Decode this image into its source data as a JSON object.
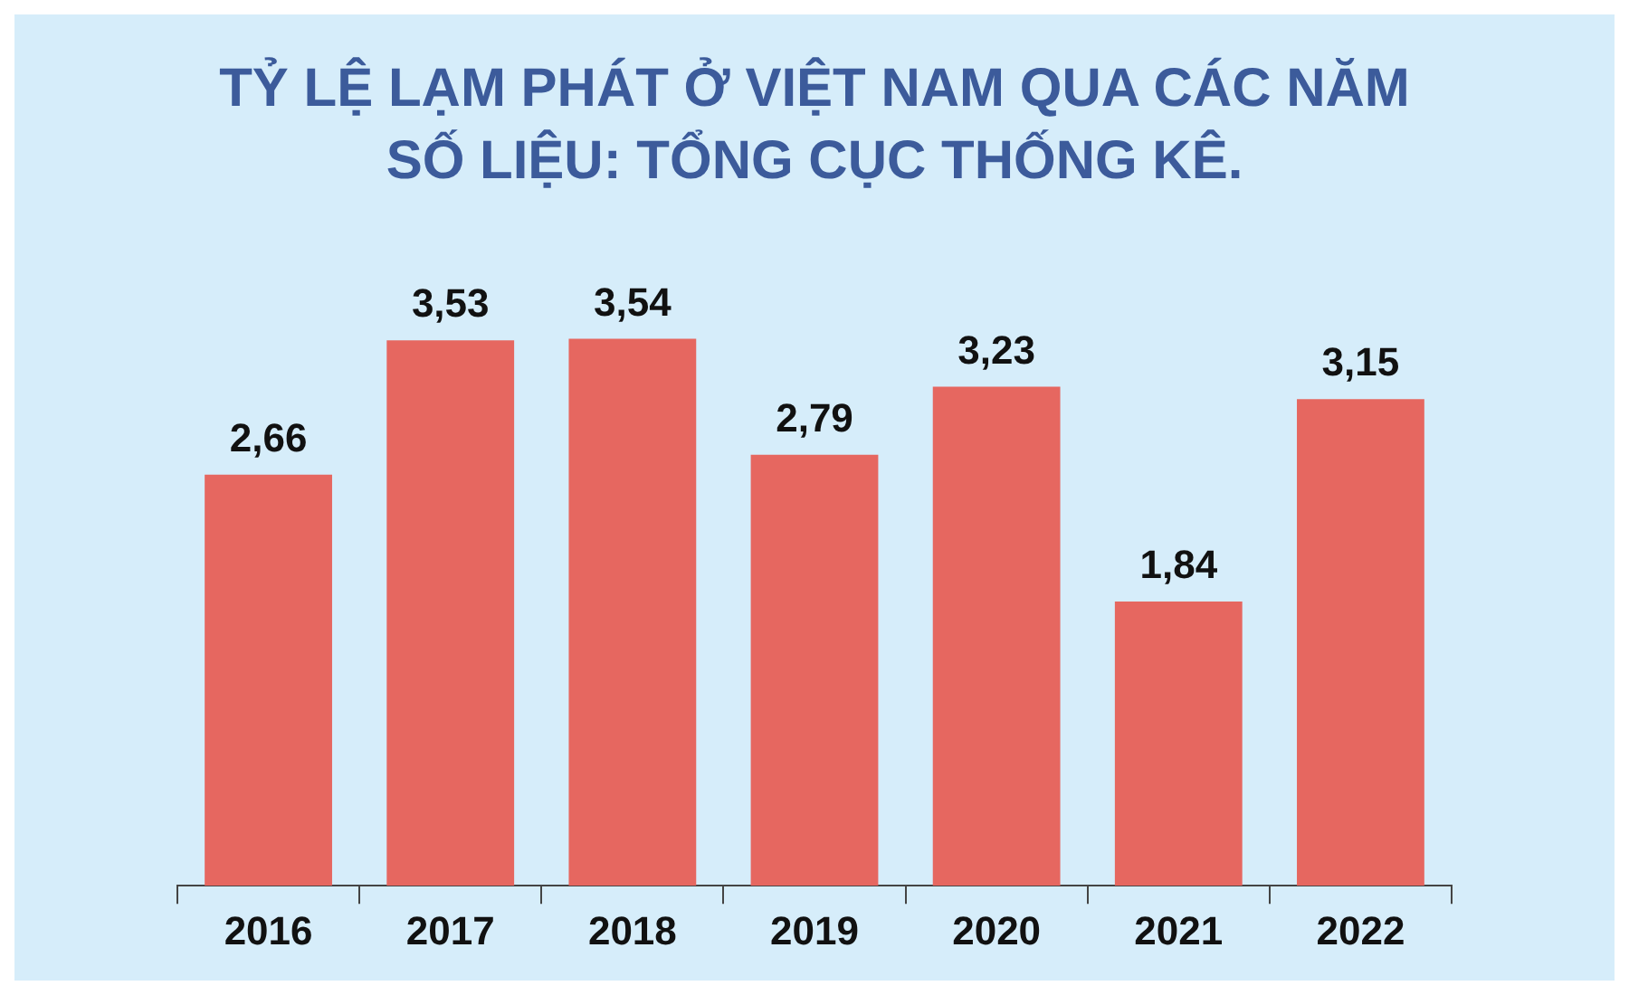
{
  "chart_data": {
    "type": "bar",
    "title": "TỶ LỆ LẠM PHÁT Ở VIỆT NAM QUA CÁC NĂM",
    "subtitle": "SỐ LIỆU: TỔNG CỤC THỐNG KÊ.",
    "categories": [
      "2016",
      "2017",
      "2018",
      "2019",
      "2020",
      "2021",
      "2022"
    ],
    "values": [
      2.66,
      3.53,
      3.54,
      2.79,
      3.23,
      1.84,
      3.15
    ],
    "value_labels": [
      "2,66",
      "3,53",
      "3,54",
      "2,79",
      "3,23",
      "1,84",
      "3,15"
    ],
    "color": "#e66760",
    "legend": false,
    "grid": false
  }
}
